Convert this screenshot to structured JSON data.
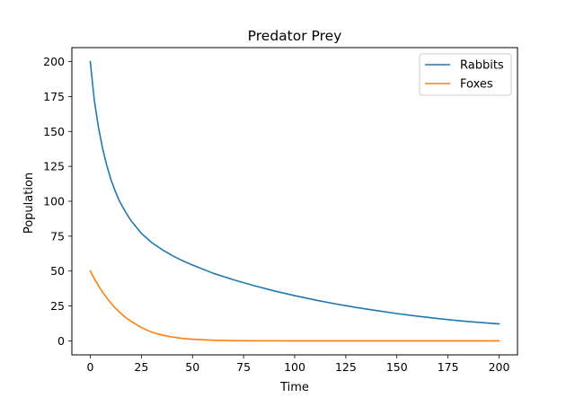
{
  "chart_data": {
    "type": "line",
    "title": "Predator Prey",
    "xlabel": "Time",
    "ylabel": "Population",
    "xlim": [
      -9,
      209
    ],
    "ylim": [
      -10,
      210
    ],
    "xticks": [
      0,
      25,
      50,
      75,
      100,
      125,
      150,
      175,
      200
    ],
    "yticks": [
      0,
      25,
      50,
      75,
      100,
      125,
      150,
      175,
      200
    ],
    "grid": false,
    "legend_position": "top-right",
    "x": [
      0,
      2,
      4,
      6,
      8,
      10,
      12,
      14,
      16,
      18,
      20,
      25,
      30,
      35,
      40,
      45,
      50,
      60,
      70,
      80,
      90,
      100,
      110,
      120,
      130,
      140,
      150,
      160,
      170,
      180,
      190,
      200
    ],
    "series": [
      {
        "name": "Rabbits",
        "color": "#1f77b4",
        "values": [
          200,
          172,
          153,
          138,
          126,
          116,
          108,
          101,
          95.5,
          90.5,
          86,
          77,
          70.5,
          65.5,
          61.2,
          57.5,
          54.3,
          48.5,
          43.8,
          39.6,
          35.8,
          32.4,
          29.3,
          26.5,
          24.0,
          21.7,
          19.6,
          17.7,
          16.0,
          14.5,
          13.3,
          12.2
        ]
      },
      {
        "name": "Foxes",
        "color": "#ff7f0e",
        "values": [
          50,
          44.5,
          39.5,
          35,
          31,
          27.3,
          24,
          21,
          18.4,
          16,
          14,
          9.5,
          6.3,
          4.2,
          2.8,
          1.8,
          1.2,
          0.5,
          0.2,
          0.1,
          0.05,
          0.02,
          0,
          0,
          0,
          0,
          0,
          0,
          0,
          0,
          0,
          0
        ]
      }
    ]
  }
}
